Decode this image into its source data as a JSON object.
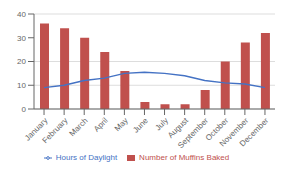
{
  "chart_data": {
    "type": "bar",
    "categories": [
      "January",
      "February",
      "March",
      "April",
      "May",
      "June",
      "July",
      "August",
      "September",
      "October",
      "November",
      "December"
    ],
    "series": [
      {
        "name": "Number of Muffins Baked",
        "type": "bar",
        "color": "#c0504d",
        "values": [
          36,
          34,
          30,
          24,
          16,
          3,
          2,
          2,
          8,
          20,
          28,
          32
        ]
      },
      {
        "name": "Hours of Daylight",
        "type": "line",
        "color": "#4472c4",
        "values": [
          9,
          10,
          12,
          13,
          15,
          15.5,
          15,
          14,
          12,
          11,
          10.5,
          9
        ]
      }
    ],
    "ylim": [
      0,
      40
    ],
    "yticks": [
      0,
      10,
      20,
      30,
      40
    ],
    "grid": true,
    "legend": "bottom"
  }
}
